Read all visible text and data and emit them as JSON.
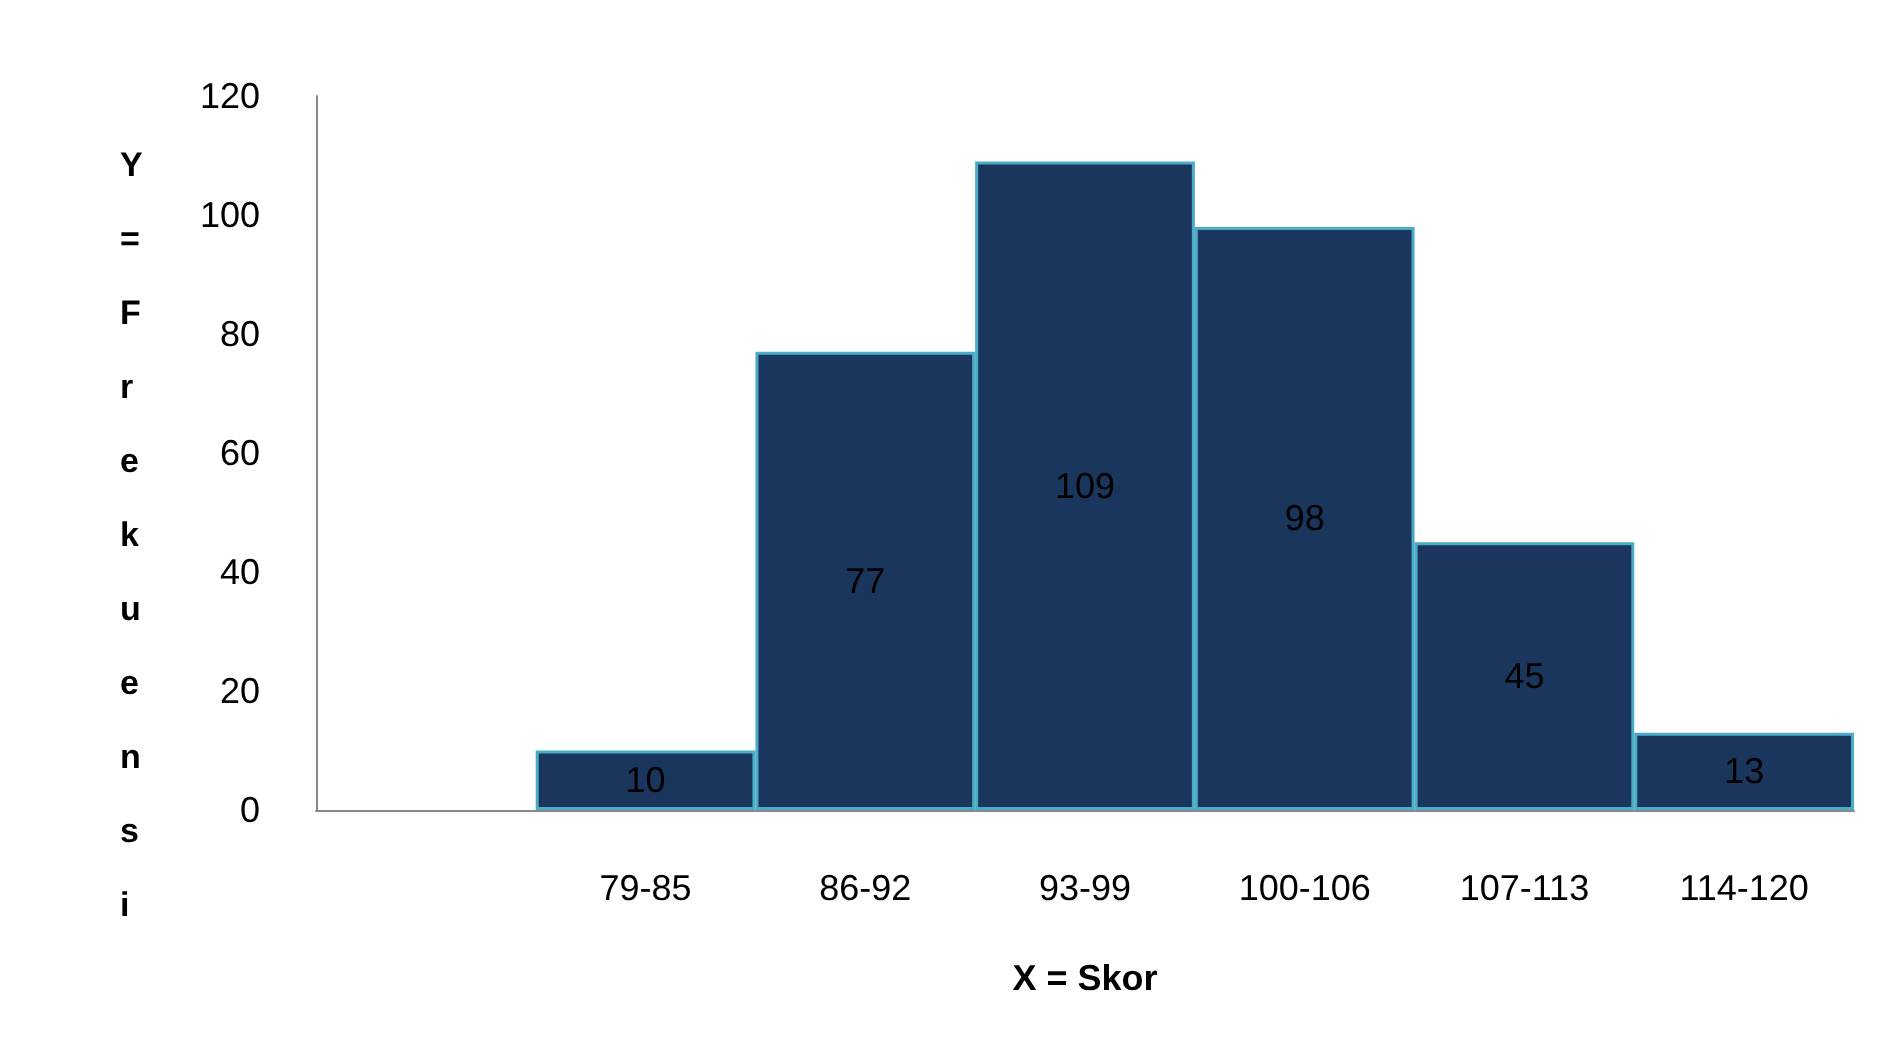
{
  "chart_data": {
    "type": "bar",
    "xlabel": "X = Skor",
    "ylabel": "Y = Frekuensi",
    "categories": [
      null,
      "79-85",
      "86-92",
      "93-99",
      "100-106",
      "107-113",
      "114-120"
    ],
    "values": [
      null,
      10,
      77,
      109,
      98,
      45,
      13
    ],
    "color": "#1b365d",
    "ylim": [
      0,
      120
    ],
    "yticks": [
      0,
      20,
      40,
      60,
      80,
      100,
      120
    ],
    "grid": false,
    "data_labels": true
  }
}
